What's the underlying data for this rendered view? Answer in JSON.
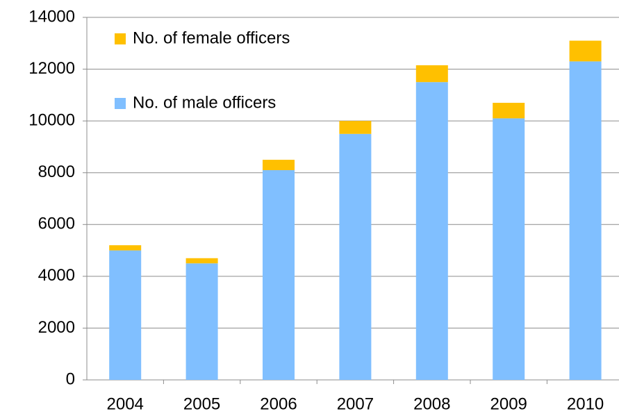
{
  "chart_data": {
    "type": "stacked_bar",
    "categories": [
      "2004",
      "2005",
      "2006",
      "2007",
      "2008",
      "2009",
      "2010"
    ],
    "series": [
      {
        "name": "No. of male officers",
        "color": "#80bfff",
        "values": [
          5000,
          4500,
          8100,
          9500,
          11500,
          10100,
          12300
        ]
      },
      {
        "name": "No. of female officers",
        "color": "#ffc000",
        "values": [
          200,
          200,
          400,
          500,
          650,
          600,
          800
        ]
      }
    ],
    "ylim": [
      0,
      14000
    ],
    "yticks": [
      0,
      2000,
      4000,
      6000,
      8000,
      10000,
      12000,
      14000
    ],
    "grid": true,
    "legend": "upper left"
  }
}
